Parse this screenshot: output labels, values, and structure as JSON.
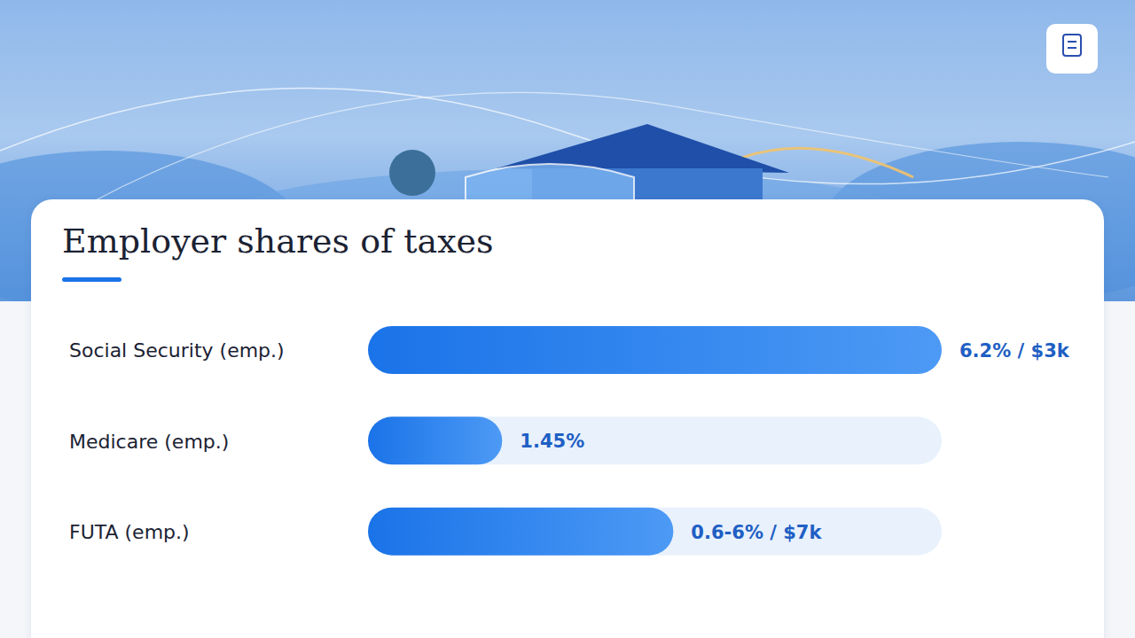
{
  "chart_data": {
    "type": "bar",
    "orientation": "horizontal",
    "title": "Employer shares of taxes",
    "categories": [
      "Social Security (emp.)",
      "Medicare (emp.)",
      "FUTA (emp.)"
    ],
    "values": [
      6.2,
      1.45,
      3.3
    ],
    "value_labels": [
      "6.2% / $3k",
      "1.45%",
      "0.6-6% / $7k"
    ],
    "data_labels": true,
    "color": "#1a73e8",
    "xlim": [
      0,
      6.2
    ],
    "tick_labels": "y",
    "grid": false
  }
}
